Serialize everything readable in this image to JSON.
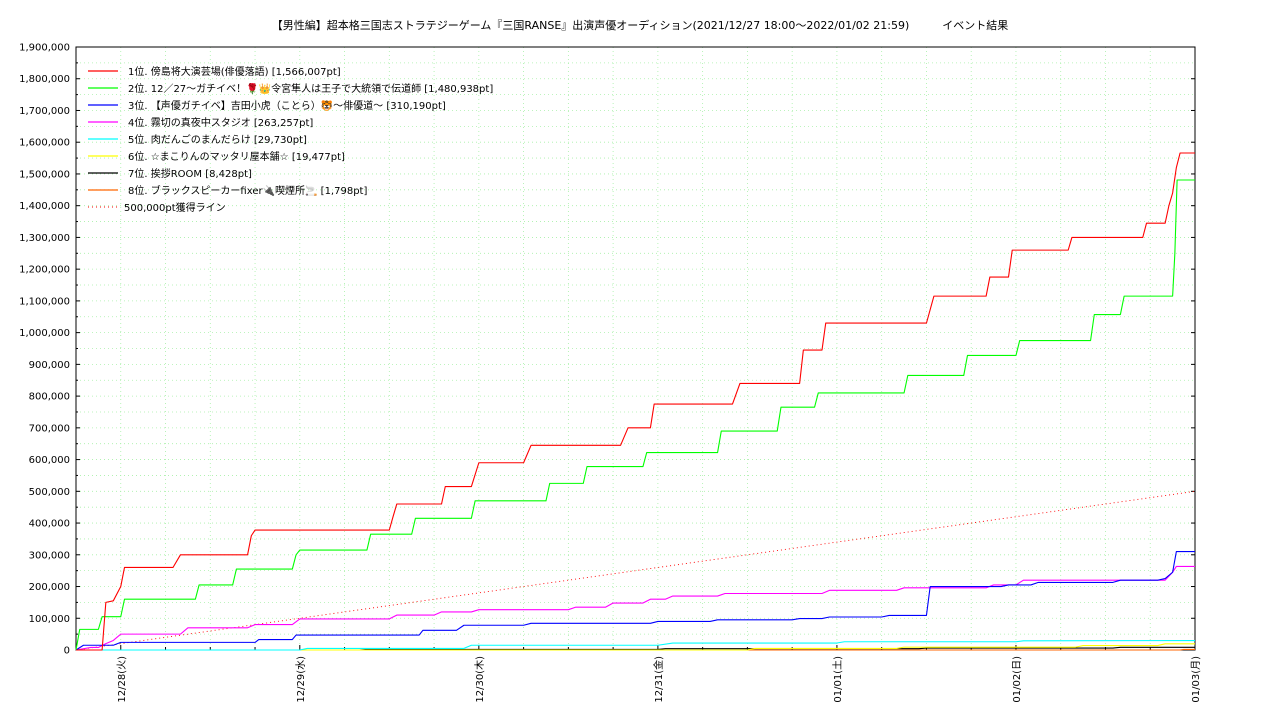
{
  "chart_data": {
    "type": "line",
    "title": "【男性編】超本格三国志ストラテジーゲーム『三国RANSE』出演声優オーディション(2021/12/27 18:00〜2022/01/02 21:59)　　　イベント結果",
    "xlabel": "",
    "ylabel": "",
    "x_start": "2021-12-27 18:00",
    "x_end": "2022-01-03 00:00",
    "ylim": [
      0,
      1900000
    ],
    "yticks": [
      0,
      100000,
      200000,
      300000,
      400000,
      500000,
      600000,
      700000,
      800000,
      900000,
      1000000,
      1100000,
      1200000,
      1300000,
      1400000,
      1500000,
      1600000,
      1700000,
      1800000,
      1900000
    ],
    "ytick_labels": [
      "0",
      "100,000",
      "200,000",
      "300,000",
      "400,000",
      "500,000",
      "600,000",
      "700,000",
      "800,000",
      "900,000",
      "1,000,000",
      "1,100,000",
      "1,200,000",
      "1,300,000",
      "1,400,000",
      "1,500,000",
      "1,600,000",
      "1,700,000",
      "1,800,000",
      "1,900,000"
    ],
    "xticks": [
      6,
      30,
      54,
      78,
      102,
      126,
      150
    ],
    "xtick_labels": [
      "12/28(火)",
      "12/29(水)",
      "12/30(木)",
      "12/31(金)",
      "01/01(土)",
      "01/02(日)",
      "01/03(月)"
    ],
    "grid": true,
    "legend_position": "top-left",
    "series": [
      {
        "name": "1位. 傍島将大演芸場(俳優落語) [1,566,007pt]",
        "color": "#ff0000",
        "points": [
          [
            0,
            0
          ],
          [
            3.5,
            0
          ],
          [
            4,
            150000
          ],
          [
            5,
            155000
          ],
          [
            6,
            200000
          ],
          [
            6.5,
            260000
          ],
          [
            13,
            260000
          ],
          [
            14,
            300000
          ],
          [
            23,
            300000
          ],
          [
            23.5,
            360000
          ],
          [
            24,
            378000
          ],
          [
            42,
            378000
          ],
          [
            42.5,
            420000
          ],
          [
            43,
            460000
          ],
          [
            49,
            460000
          ],
          [
            49.5,
            515000
          ],
          [
            53,
            515000
          ],
          [
            54,
            590000
          ],
          [
            60,
            590000
          ],
          [
            61,
            645000
          ],
          [
            73,
            645000
          ],
          [
            74,
            700000
          ],
          [
            77,
            700000
          ],
          [
            77.5,
            775000
          ],
          [
            88,
            775000
          ],
          [
            89,
            840000
          ],
          [
            97,
            840000
          ],
          [
            97.5,
            945000
          ],
          [
            100,
            945000
          ],
          [
            100.5,
            1030000
          ],
          [
            114,
            1030000
          ],
          [
            115,
            1115000
          ],
          [
            122,
            1115000
          ],
          [
            122.5,
            1175000
          ],
          [
            125,
            1175000
          ],
          [
            125.5,
            1260000
          ],
          [
            133,
            1260000
          ],
          [
            133.5,
            1300000
          ],
          [
            143,
            1300000
          ],
          [
            143.5,
            1345000
          ],
          [
            146,
            1345000
          ],
          [
            146.5,
            1400000
          ],
          [
            147,
            1440000
          ],
          [
            147.5,
            1520000
          ],
          [
            148,
            1566007
          ],
          [
            150,
            1566007
          ]
        ]
      },
      {
        "name": "2位. 12／27〜ガチイベ！🌹👑令宮隼人は王子で大統領で伝道師 [1,480,938pt]",
        "color": "#00ff00",
        "points": [
          [
            0,
            0
          ],
          [
            0.5,
            65000
          ],
          [
            3,
            65000
          ],
          [
            3.5,
            105000
          ],
          [
            6,
            105000
          ],
          [
            6.5,
            160000
          ],
          [
            16,
            160000
          ],
          [
            16.5,
            205000
          ],
          [
            21,
            205000
          ],
          [
            21.5,
            255000
          ],
          [
            29,
            255000
          ],
          [
            29.5,
            300000
          ],
          [
            30,
            315000
          ],
          [
            39,
            315000
          ],
          [
            39.5,
            365000
          ],
          [
            45,
            365000
          ],
          [
            45.5,
            415000
          ],
          [
            53,
            415000
          ],
          [
            53.5,
            470000
          ],
          [
            63,
            470000
          ],
          [
            63.5,
            525000
          ],
          [
            68,
            525000
          ],
          [
            68.5,
            578000
          ],
          [
            76,
            578000
          ],
          [
            76.5,
            622000
          ],
          [
            86,
            622000
          ],
          [
            86.5,
            690000
          ],
          [
            94,
            690000
          ],
          [
            94.5,
            765000
          ],
          [
            99,
            765000
          ],
          [
            99.5,
            810000
          ],
          [
            111,
            810000
          ],
          [
            111.5,
            865000
          ],
          [
            119,
            865000
          ],
          [
            119.5,
            928000
          ],
          [
            126,
            928000
          ],
          [
            126.5,
            975000
          ],
          [
            136,
            975000
          ],
          [
            136.5,
            1057000
          ],
          [
            140,
            1057000
          ],
          [
            140.5,
            1115000
          ],
          [
            147,
            1115000
          ],
          [
            147.3,
            1250000
          ],
          [
            147.6,
            1480938
          ],
          [
            150,
            1480938
          ]
        ]
      },
      {
        "name": "3位. 【声優ガチイベ】吉田小虎（ことら）🐯〜俳優道〜 [310,190pt]",
        "color": "#0000ff",
        "points": [
          [
            0,
            0
          ],
          [
            1,
            15000
          ],
          [
            5,
            15000
          ],
          [
            6,
            24000
          ],
          [
            24,
            24000
          ],
          [
            24.5,
            33000
          ],
          [
            29,
            33000
          ],
          [
            29.5,
            47000
          ],
          [
            46,
            47000
          ],
          [
            46.5,
            62000
          ],
          [
            51,
            62000
          ],
          [
            52,
            78000
          ],
          [
            60,
            78000
          ],
          [
            61,
            84000
          ],
          [
            77,
            84000
          ],
          [
            78,
            90000
          ],
          [
            85,
            90000
          ],
          [
            86,
            95000
          ],
          [
            96,
            95000
          ],
          [
            97,
            99000
          ],
          [
            100,
            99000
          ],
          [
            101,
            104000
          ],
          [
            108,
            104000
          ],
          [
            109,
            109000
          ],
          [
            114,
            109000
          ],
          [
            114.5,
            200000
          ],
          [
            124,
            200000
          ],
          [
            125,
            205000
          ],
          [
            128,
            205000
          ],
          [
            129,
            213000
          ],
          [
            139,
            213000
          ],
          [
            140,
            220000
          ],
          [
            145,
            220000
          ],
          [
            146,
            225000
          ],
          [
            147,
            245000
          ],
          [
            147.5,
            310190
          ],
          [
            150,
            310190
          ]
        ]
      },
      {
        "name": "4位. 霧切の真夜中スタジオ [263,257pt]",
        "color": "#ff00ff",
        "points": [
          [
            0,
            0
          ],
          [
            2,
            8000
          ],
          [
            3,
            8000
          ],
          [
            4,
            20000
          ],
          [
            5,
            30000
          ],
          [
            6,
            50000
          ],
          [
            14,
            50000
          ],
          [
            15,
            70000
          ],
          [
            23,
            70000
          ],
          [
            24,
            80000
          ],
          [
            29,
            80000
          ],
          [
            30,
            98000
          ],
          [
            42,
            98000
          ],
          [
            43,
            110000
          ],
          [
            48,
            110000
          ],
          [
            49,
            120000
          ],
          [
            53,
            120000
          ],
          [
            54,
            127000
          ],
          [
            66,
            127000
          ],
          [
            67,
            135000
          ],
          [
            71,
            135000
          ],
          [
            72,
            148000
          ],
          [
            76,
            148000
          ],
          [
            77,
            160000
          ],
          [
            79,
            160000
          ],
          [
            80,
            170000
          ],
          [
            86,
            170000
          ],
          [
            87,
            178000
          ],
          [
            100,
            178000
          ],
          [
            101,
            188000
          ],
          [
            110,
            188000
          ],
          [
            111,
            196000
          ],
          [
            122,
            196000
          ],
          [
            123,
            205000
          ],
          [
            126,
            205000
          ],
          [
            127,
            220000
          ],
          [
            146,
            220000
          ],
          [
            147,
            245000
          ],
          [
            147.5,
            263257
          ],
          [
            150,
            263257
          ]
        ]
      },
      {
        "name": "5位. 肉だんごのまんだらけ [29,730pt]",
        "color": "#00ffff",
        "points": [
          [
            0,
            0
          ],
          [
            30,
            0
          ],
          [
            31,
            5000
          ],
          [
            52,
            5000
          ],
          [
            53,
            15000
          ],
          [
            78,
            15000
          ],
          [
            80,
            22000
          ],
          [
            102,
            22000
          ],
          [
            103,
            26000
          ],
          [
            126,
            26000
          ],
          [
            127,
            29000
          ],
          [
            150,
            29730
          ]
        ]
      },
      {
        "name": "6位. ☆まこりんのマッタリ屋本舗☆ [19,477pt]",
        "color": "#ffff00",
        "points": [
          [
            0,
            0
          ],
          [
            90,
            0
          ],
          [
            91,
            5000
          ],
          [
            110,
            5000
          ],
          [
            111,
            9000
          ],
          [
            134,
            9000
          ],
          [
            135,
            14000
          ],
          [
            145,
            14000
          ],
          [
            146,
            19477
          ],
          [
            150,
            19477
          ]
        ]
      },
      {
        "name": "7位. 挨拶ROOM [8,428pt]",
        "color": "#000000",
        "points": [
          [
            0,
            0
          ],
          [
            38,
            0
          ],
          [
            39,
            2000
          ],
          [
            78,
            2000
          ],
          [
            79,
            4000
          ],
          [
            113,
            4000
          ],
          [
            114,
            6000
          ],
          [
            139,
            6000
          ],
          [
            140,
            8428
          ],
          [
            150,
            8428
          ]
        ]
      },
      {
        "name": "8位. ブラックスピーカーfixer🔌喫煙所🚬 [1,798pt]",
        "color": "#ff6600",
        "points": [
          [
            0,
            0
          ],
          [
            148,
            0
          ],
          [
            148.5,
            1798
          ],
          [
            150,
            1798
          ]
        ]
      },
      {
        "name": "500,000pt獲得ライン",
        "color": "#ff0000",
        "dashed": true,
        "points": [
          [
            0,
            0
          ],
          [
            150,
            500000
          ]
        ]
      }
    ]
  }
}
